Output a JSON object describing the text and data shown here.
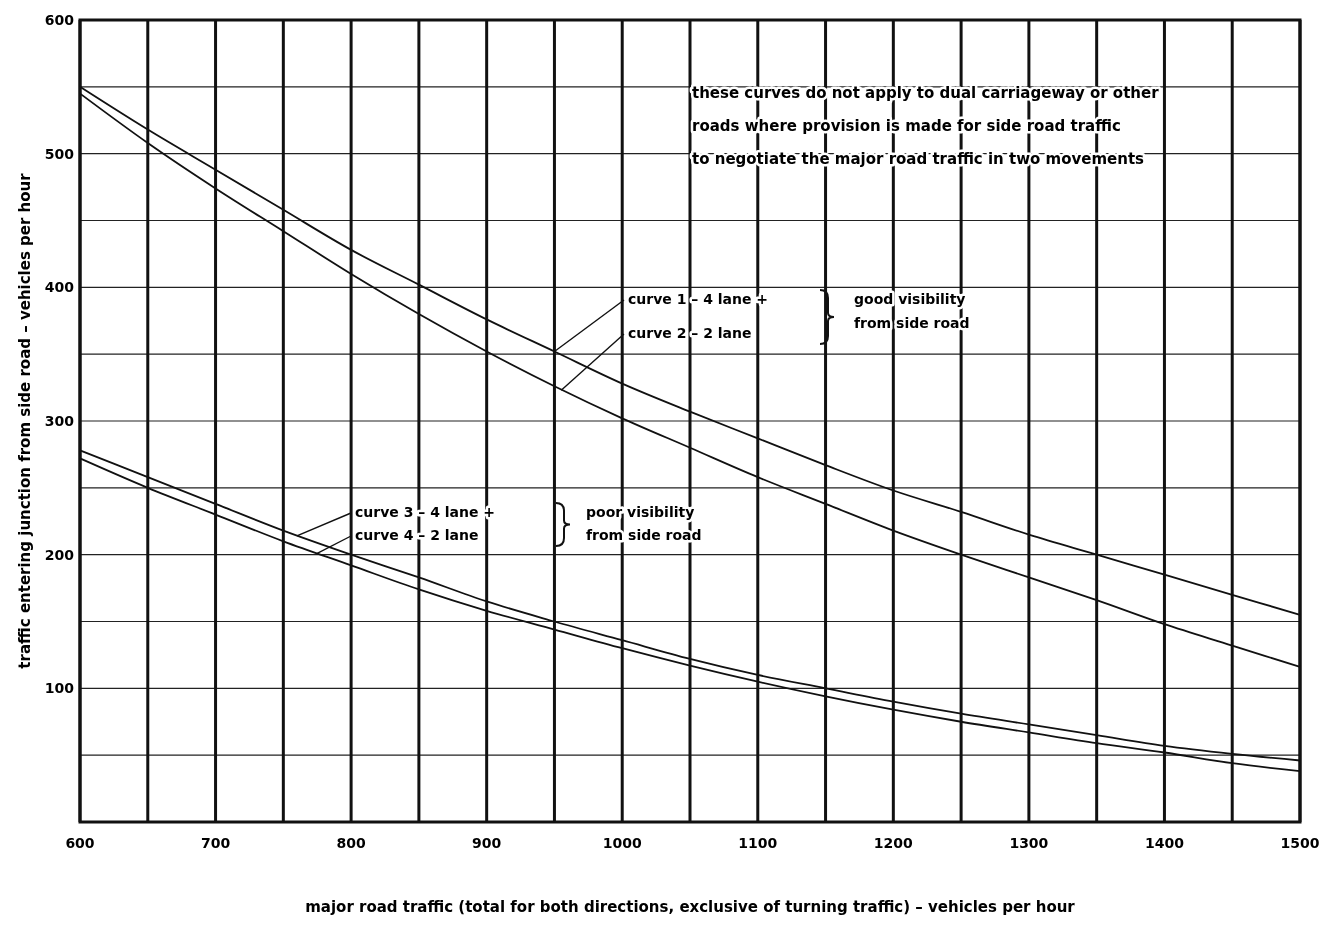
{
  "chart_data": {
    "type": "line",
    "xlabel": "major road traffic (total for both directions, exclusive of turning traffic) – vehicles per hour",
    "ylabel": "traffic entering junction from side road – vehicles per hour",
    "x": [
      600,
      650,
      700,
      750,
      800,
      850,
      900,
      950,
      1000,
      1050,
      1100,
      1150,
      1200,
      1250,
      1300,
      1350,
      1400,
      1450,
      1500
    ],
    "series": [
      {
        "color": "#111111",
        "values": [
          550,
          518,
          488,
          458,
          428,
          402,
          376,
          352,
          328,
          307,
          287,
          267,
          248,
          232,
          215,
          200,
          185,
          170,
          155
        ]
      },
      {
        "color": "#111111",
        "values": [
          545,
          508,
          474,
          442,
          410,
          380,
          352,
          326,
          302,
          280,
          258,
          238,
          218,
          200,
          183,
          166,
          148,
          132,
          116
        ]
      },
      {
        "color": "#111111",
        "values": [
          278,
          258,
          238,
          218,
          200,
          183,
          165,
          150,
          136,
          122,
          110,
          100,
          90,
          81,
          73,
          65,
          57,
          51,
          46
        ]
      },
      {
        "color": "#111111",
        "values": [
          272,
          250,
          230,
          210,
          192,
          174,
          158,
          144,
          130,
          117,
          105,
          94,
          84,
          75,
          67,
          59,
          52,
          44,
          38
        ]
      }
    ],
    "xlim": [
      600,
      1500
    ],
    "ylim": [
      0,
      600
    ],
    "xticks": [
      600,
      {
        "value": 650,
        "label": null
      },
      700,
      {
        "value": 750,
        "label": null
      },
      800,
      {
        "value": 850,
        "label": null
      },
      900,
      {
        "value": 950,
        "label": null
      },
      1000,
      {
        "value": 1050,
        "label": null
      },
      1100,
      {
        "value": 1150,
        "label": null
      },
      1200,
      {
        "value": 1250,
        "label": null
      },
      1300,
      {
        "value": 1350,
        "label": null
      },
      1400,
      {
        "value": 1450,
        "label": null
      },
      1500
    ],
    "yticks": [
      {
        "value": 50,
        "label": null
      },
      100,
      {
        "value": 150,
        "label": null
      },
      200,
      {
        "value": 250,
        "label": null
      },
      300,
      {
        "value": 350,
        "label": null
      },
      400,
      {
        "value": 450,
        "label": null
      },
      500,
      {
        "value": 550,
        "label": null
      },
      600
    ],
    "grid": true,
    "marker": "none",
    "line_style": "solid",
    "annotations": [
      "these curves do not apply to dual carriageway or other\nroads where provision is made for side road traffic\nto negotiate the major road traffic in two movements",
      {
        "text": "curve 1 – 4 lane +",
        "x": 950,
        "y": 352
      },
      {
        "text": "curve 2 – 2 lane",
        "x": 955,
        "y": 323
      },
      "good visibility\nfrom side road",
      {
        "text": "curve 3 – 4 lane +",
        "x": 760,
        "y": 214
      },
      {
        "text": "curve 4 – 2 lane",
        "x": 775,
        "y": 201
      },
      "poor visibility\nfrom side road"
    ]
  }
}
